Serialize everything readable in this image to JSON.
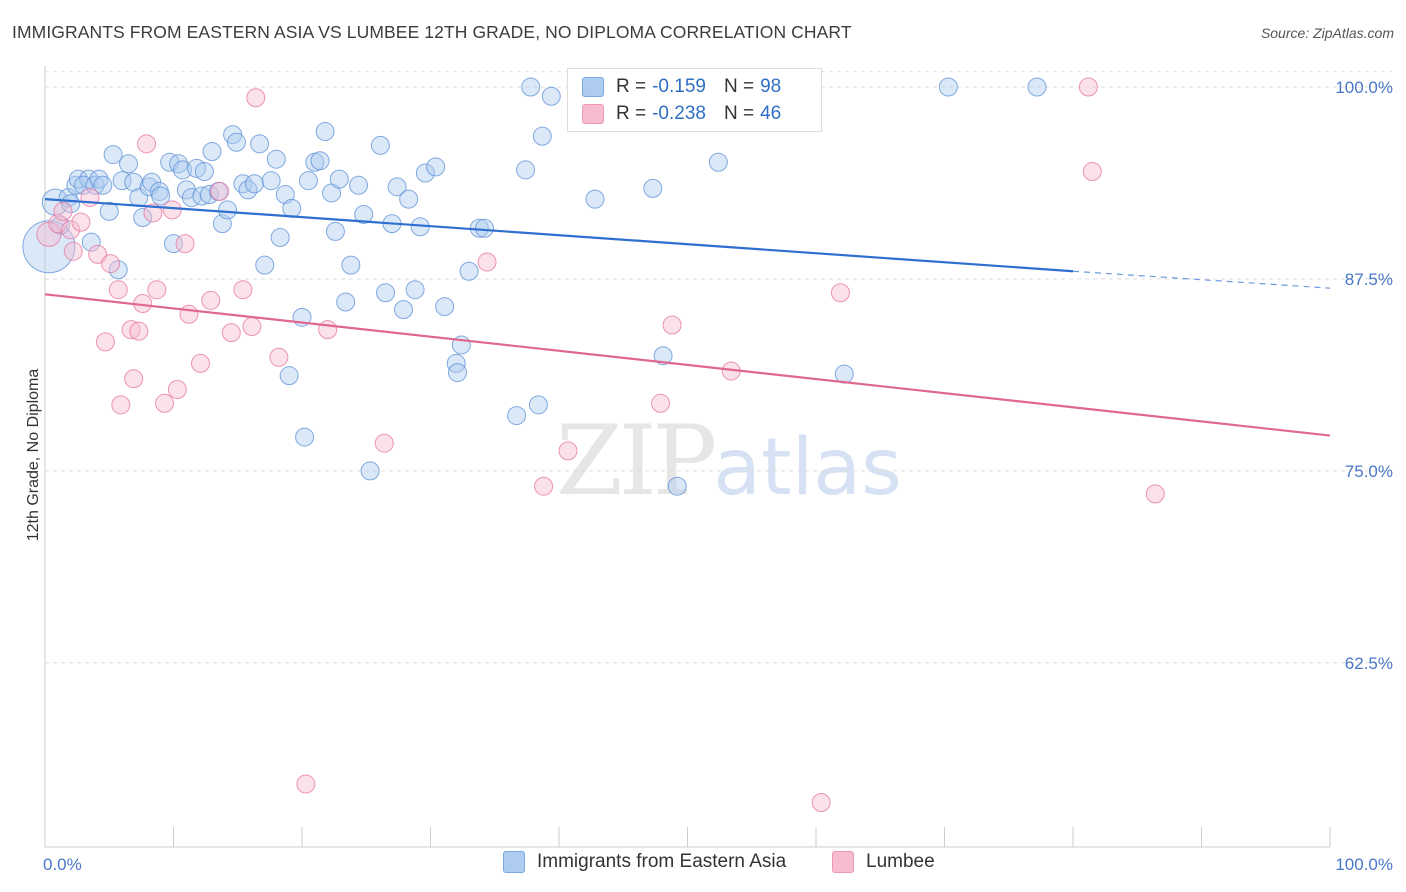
{
  "title": "IMMIGRANTS FROM EASTERN ASIA VS LUMBEE 12TH GRADE, NO DIPLOMA CORRELATION CHART",
  "source": "Source: ZipAtlas.com",
  "watermark": {
    "zip": "ZIP",
    "atlas": "atlas"
  },
  "colors": {
    "blue": "#5b8fd6",
    "blue_fill": "#aecbf0",
    "pink": "#e6739f",
    "pink_fill": "#f7bcd0",
    "blue_line": "#2e6fcf",
    "pink_line": "#e0678f",
    "tick_text": "#4a78c8"
  },
  "legend": {
    "rows": [
      {
        "r_label": "R =",
        "r_value": "-0.159",
        "n_label": "N =",
        "n_value": "98"
      },
      {
        "r_label": "R =",
        "r_value": "-0.238",
        "n_label": "N =",
        "n_value": "46"
      }
    ]
  },
  "chart_data": {
    "type": "scatter",
    "xlabel": "",
    "ylabel": "12th Grade, No Diploma",
    "xlim": [
      0,
      100
    ],
    "ylim": [
      50.5,
      101.5
    ],
    "x_tick_labels": [
      "0.0%",
      "100.0%"
    ],
    "y_ticks": [
      100.0,
      87.5,
      75.0,
      62.5
    ],
    "y_tick_labels": [
      "100.0%",
      "87.5%",
      "75.0%",
      "62.5%"
    ],
    "grid": "horizontal dashed",
    "series": [
      {
        "name": "Immigrants from Eastern Asia",
        "color": "blue",
        "trend": {
          "x0": 0,
          "y0": 92.7,
          "x1": 80,
          "y1": 88.0,
          "dashed_to_x": 100,
          "dashed_to_y": 86.9
        },
        "points": [
          [
            0.3,
            89.6,
            26
          ],
          [
            0.8,
            92.5,
            13
          ],
          [
            1.2,
            91.0,
            9
          ],
          [
            1.8,
            92.8,
            9
          ],
          [
            2.0,
            92.4,
            9
          ],
          [
            2.4,
            93.6,
            9
          ],
          [
            2.6,
            94.0,
            9
          ],
          [
            3.4,
            94.0,
            9
          ],
          [
            3.0,
            93.6,
            9
          ],
          [
            3.6,
            89.9,
            9
          ],
          [
            3.9,
            93.6,
            9
          ],
          [
            4.2,
            94.0,
            9
          ],
          [
            4.5,
            93.6,
            9
          ],
          [
            5.0,
            91.9,
            9
          ],
          [
            5.3,
            95.6,
            9
          ],
          [
            5.7,
            88.1,
            9
          ],
          [
            6.0,
            93.9,
            9
          ],
          [
            6.5,
            95.0,
            9
          ],
          [
            6.9,
            93.8,
            9
          ],
          [
            7.3,
            92.8,
            9
          ],
          [
            7.6,
            91.5,
            9
          ],
          [
            8.1,
            93.5,
            9
          ],
          [
            8.3,
            93.8,
            9
          ],
          [
            8.9,
            93.2,
            9
          ],
          [
            9.0,
            92.9,
            9
          ],
          [
            9.7,
            95.1,
            9
          ],
          [
            10.0,
            89.8,
            9
          ],
          [
            10.4,
            95.0,
            9
          ],
          [
            10.7,
            94.6,
            9
          ],
          [
            11.0,
            93.3,
            9
          ],
          [
            11.4,
            92.8,
            9
          ],
          [
            11.8,
            94.7,
            9
          ],
          [
            12.2,
            92.9,
            9
          ],
          [
            12.4,
            94.5,
            9
          ],
          [
            12.8,
            93.0,
            9
          ],
          [
            13.0,
            95.8,
            9
          ],
          [
            13.5,
            93.2,
            9
          ],
          [
            13.8,
            91.1,
            9
          ],
          [
            14.2,
            92.0,
            9
          ],
          [
            14.6,
            96.9,
            9
          ],
          [
            14.9,
            96.4,
            9
          ],
          [
            15.4,
            93.7,
            9
          ],
          [
            15.8,
            93.3,
            9
          ],
          [
            16.3,
            93.7,
            9
          ],
          [
            16.7,
            96.3,
            9
          ],
          [
            17.1,
            88.4,
            9
          ],
          [
            17.6,
            93.9,
            9
          ],
          [
            18.0,
            95.3,
            9
          ],
          [
            18.3,
            90.2,
            9
          ],
          [
            18.7,
            93.0,
            9
          ],
          [
            19.2,
            92.1,
            9
          ],
          [
            20.0,
            85.0,
            9
          ],
          [
            20.5,
            93.9,
            9
          ],
          [
            20.2,
            77.2,
            9
          ],
          [
            21.0,
            95.1,
            9
          ],
          [
            21.4,
            95.2,
            9
          ],
          [
            21.8,
            97.1,
            9
          ],
          [
            22.3,
            93.1,
            9
          ],
          [
            22.6,
            90.6,
            9
          ],
          [
            22.9,
            94.0,
            9
          ],
          [
            23.4,
            86.0,
            9
          ],
          [
            23.8,
            88.4,
            9
          ],
          [
            24.4,
            93.6,
            9
          ],
          [
            24.8,
            91.7,
            9
          ],
          [
            25.3,
            75.0,
            9
          ],
          [
            26.1,
            96.2,
            9
          ],
          [
            26.5,
            86.6,
            9
          ],
          [
            27.0,
            91.1,
            9
          ],
          [
            27.4,
            93.5,
            9
          ],
          [
            27.9,
            85.5,
            9
          ],
          [
            28.3,
            92.7,
            9
          ],
          [
            28.8,
            86.8,
            9
          ],
          [
            29.2,
            90.9,
            9
          ],
          [
            29.6,
            94.4,
            9
          ],
          [
            30.4,
            94.8,
            9
          ],
          [
            31.1,
            85.7,
            9
          ],
          [
            32.0,
            82.0,
            9
          ],
          [
            32.1,
            81.4,
            9
          ],
          [
            32.4,
            83.2,
            9
          ],
          [
            33.0,
            88.0,
            9
          ],
          [
            33.8,
            90.8,
            9
          ],
          [
            34.2,
            90.8,
            9
          ],
          [
            36.7,
            78.6,
            9
          ],
          [
            37.4,
            94.6,
            9
          ],
          [
            38.4,
            79.3,
            9
          ],
          [
            38.7,
            96.8,
            9
          ],
          [
            37.8,
            100.0,
            9
          ],
          [
            39.4,
            99.4,
            9
          ],
          [
            42.3,
            100.0,
            9
          ],
          [
            42.8,
            92.7,
            9
          ],
          [
            47.3,
            93.4,
            9
          ],
          [
            48.1,
            82.5,
            9
          ],
          [
            49.2,
            74.0,
            9
          ],
          [
            52.4,
            95.1,
            9
          ],
          [
            62.2,
            81.3,
            9
          ],
          [
            70.3,
            100.0,
            9
          ],
          [
            77.2,
            100.0,
            9
          ],
          [
            19.0,
            81.2,
            9
          ]
        ]
      },
      {
        "name": "Lumbee",
        "color": "pink",
        "trend": {
          "x0": 0,
          "y0": 86.5,
          "x1": 100,
          "y1": 77.3
        },
        "points": [
          [
            0.3,
            90.4,
            12
          ],
          [
            1.0,
            91.1,
            9
          ],
          [
            1.4,
            91.9,
            9
          ],
          [
            2.0,
            90.7,
            9
          ],
          [
            2.2,
            89.3,
            9
          ],
          [
            2.8,
            91.2,
            9
          ],
          [
            3.5,
            92.8,
            9
          ],
          [
            4.1,
            89.1,
            9
          ],
          [
            4.7,
            83.4,
            9
          ],
          [
            5.1,
            88.5,
            9
          ],
          [
            5.7,
            86.8,
            9
          ],
          [
            5.9,
            79.3,
            9
          ],
          [
            6.7,
            84.2,
            9
          ],
          [
            6.9,
            81.0,
            9
          ],
          [
            7.3,
            84.1,
            9
          ],
          [
            7.6,
            85.9,
            9
          ],
          [
            7.9,
            96.3,
            9
          ],
          [
            8.4,
            91.8,
            9
          ],
          [
            8.7,
            86.8,
            9
          ],
          [
            9.3,
            79.4,
            9
          ],
          [
            9.9,
            92.0,
            9
          ],
          [
            10.3,
            80.3,
            9
          ],
          [
            10.9,
            89.8,
            9
          ],
          [
            11.2,
            85.2,
            9
          ],
          [
            12.1,
            82.0,
            9
          ],
          [
            12.9,
            86.1,
            9
          ],
          [
            13.6,
            93.2,
            9
          ],
          [
            14.5,
            84.0,
            9
          ],
          [
            15.4,
            86.8,
            9
          ],
          [
            16.1,
            84.4,
            9
          ],
          [
            16.4,
            99.3,
            9
          ],
          [
            18.2,
            82.4,
            9
          ],
          [
            20.3,
            54.6,
            9
          ],
          [
            22.0,
            84.2,
            9
          ],
          [
            26.4,
            76.8,
            9
          ],
          [
            34.4,
            88.6,
            9
          ],
          [
            38.8,
            74.0,
            9
          ],
          [
            40.7,
            76.3,
            9
          ],
          [
            47.9,
            79.4,
            9
          ],
          [
            48.8,
            84.5,
            9
          ],
          [
            53.4,
            81.5,
            9
          ],
          [
            60.4,
            53.4,
            9
          ],
          [
            61.9,
            86.6,
            9
          ],
          [
            81.2,
            100.0,
            9
          ],
          [
            81.5,
            94.5,
            9
          ],
          [
            86.4,
            73.5,
            9
          ]
        ]
      }
    ]
  },
  "bottom_legend": [
    "Immigrants from Eastern Asia",
    "Lumbee"
  ]
}
